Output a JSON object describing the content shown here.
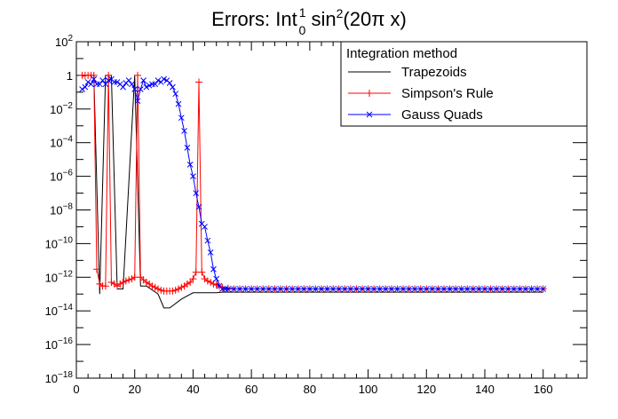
{
  "chart_data": {
    "type": "line",
    "title": {
      "prefix": "Errors: Int",
      "upper_limit": "1",
      "lower_limit": "0",
      "func": " sin",
      "power": "2",
      "arg": "(20π x)"
    },
    "xlabel": "",
    "ylabel": "",
    "xlim": [
      0,
      175
    ],
    "ylim": [
      1e-18,
      100
    ],
    "yscale": "log",
    "grid": false,
    "legend_position": "top-right",
    "legend_title": "Integration method",
    "x_ticks": [
      0,
      20,
      40,
      60,
      80,
      100,
      120,
      140,
      160
    ],
    "y_ticks": [
      {
        "value": 1e-18,
        "base": "10",
        "exp": "−18"
      },
      {
        "value": 1e-16,
        "base": "10",
        "exp": "−16"
      },
      {
        "value": 1e-14,
        "base": "10",
        "exp": "−14"
      },
      {
        "value": 1e-12,
        "base": "10",
        "exp": "−12"
      },
      {
        "value": 1e-10,
        "base": "10",
        "exp": "−10"
      },
      {
        "value": 1e-08,
        "base": "10",
        "exp": "−8"
      },
      {
        "value": 1e-06,
        "base": "10",
        "exp": "−6"
      },
      {
        "value": 0.0001,
        "base": "10",
        "exp": "−4"
      },
      {
        "value": 0.01,
        "base": "10",
        "exp": "−2"
      },
      {
        "value": 1,
        "base": "1",
        "exp": ""
      },
      {
        "value": 100,
        "base": "10",
        "exp": "2"
      }
    ],
    "series": [
      {
        "name": "Trapezoids",
        "color": "#000000",
        "marker": "none",
        "x": [
          2,
          4,
          6,
          8,
          10,
          12,
          14,
          16,
          20,
          22,
          24,
          28,
          30,
          32,
          36,
          40,
          44,
          48,
          50,
          55,
          60,
          80,
          100,
          120,
          140,
          160
        ],
        "y": [
          0.9,
          1.0,
          1.0,
          1e-13,
          1.0,
          1.0,
          2e-13,
          2e-13,
          1.0,
          3e-13,
          3e-13,
          1e-13,
          1.5e-14,
          1.5e-14,
          5e-14,
          1.2e-13,
          1.2e-13,
          1.2e-13,
          1.3e-13,
          1.3e-13,
          1.3e-13,
          1.3e-13,
          1.3e-13,
          1.3e-13,
          1.3e-13,
          1.3e-13
        ]
      },
      {
        "name": "Simpson's Rule",
        "color": "#ff0000",
        "marker": "plus",
        "x": [
          2,
          3,
          4,
          5,
          6,
          7,
          8,
          9,
          10,
          11,
          12,
          13,
          14,
          15,
          16,
          17,
          18,
          19,
          20,
          21,
          22,
          23,
          24,
          25,
          26,
          27,
          28,
          29,
          30,
          31,
          32,
          33,
          34,
          35,
          36,
          37,
          38,
          39,
          40,
          41,
          42,
          43,
          44,
          45,
          46,
          47,
          48,
          49,
          50,
          52,
          54,
          56,
          58,
          60,
          62,
          64,
          66,
          68,
          70,
          72,
          74,
          76,
          78,
          80,
          82,
          84,
          86,
          88,
          90,
          92,
          94,
          96,
          98,
          100,
          102,
          104,
          106,
          108,
          110,
          112,
          114,
          116,
          118,
          120,
          122,
          124,
          126,
          128,
          130,
          132,
          134,
          136,
          138,
          140,
          142,
          144,
          146,
          148,
          150,
          152,
          154,
          156,
          158,
          160
        ],
        "y": [
          1.0,
          1.0,
          1.0,
          1.0,
          1.0,
          3e-12,
          4e-13,
          3e-13,
          3e-13,
          1.0,
          5e-13,
          4e-13,
          3e-13,
          4e-13,
          5e-13,
          6e-13,
          7e-13,
          8e-13,
          1e-12,
          1.0,
          1e-12,
          7e-13,
          5e-13,
          4e-13,
          3e-13,
          2.5e-13,
          2e-13,
          1.7e-13,
          1.5e-13,
          1.5e-13,
          1.5e-13,
          1.5e-13,
          1.7e-13,
          2e-13,
          2.5e-13,
          3e-13,
          4e-13,
          5e-13,
          8e-13,
          2e-12,
          0.4,
          2e-12,
          8e-13,
          6e-13,
          5e-13,
          4e-13,
          3.5e-13,
          3e-13,
          2.5e-13,
          2.2e-13,
          2e-13,
          2e-13,
          2e-13,
          2e-13,
          2e-13,
          2e-13,
          2e-13,
          2e-13,
          2e-13,
          2e-13,
          2e-13,
          2e-13,
          2e-13,
          2e-13,
          2e-13,
          2e-13,
          2e-13,
          2e-13,
          2e-13,
          2e-13,
          2e-13,
          2e-13,
          2e-13,
          2e-13,
          2e-13,
          2e-13,
          2e-13,
          2e-13,
          2e-13,
          2e-13,
          2e-13,
          2e-13,
          2e-13,
          2e-13,
          2e-13,
          2e-13,
          2e-13,
          2e-13,
          2e-13,
          2e-13,
          2e-13,
          2e-13,
          2e-13,
          2e-13,
          2e-13,
          2e-13,
          2e-13,
          2e-13,
          2e-13,
          2e-13,
          2e-13,
          2e-13,
          2e-13,
          2e-13
        ]
      },
      {
        "name": "Gauss Quads",
        "color": "#0000ff",
        "marker": "x",
        "x": [
          2,
          3,
          4,
          5,
          6,
          7,
          8,
          9,
          10,
          11,
          12,
          13,
          14,
          15,
          16,
          17,
          18,
          19,
          20,
          21,
          22,
          23,
          24,
          25,
          26,
          27,
          28,
          29,
          30,
          31,
          32,
          33,
          34,
          35,
          36,
          37,
          38,
          39,
          40,
          41,
          42,
          43,
          44,
          45,
          46,
          47,
          48,
          49,
          50,
          51,
          52,
          54,
          56,
          58,
          60,
          62,
          64,
          66,
          68,
          70,
          72,
          74,
          76,
          78,
          80,
          82,
          84,
          86,
          88,
          90,
          92,
          94,
          96,
          98,
          100,
          102,
          104,
          106,
          108,
          110,
          112,
          114,
          116,
          118,
          120,
          122,
          124,
          126,
          128,
          130,
          132,
          134,
          136,
          138,
          140,
          142,
          144,
          146,
          148,
          150,
          152,
          154,
          156,
          158,
          160
        ],
        "y": [
          0.15,
          0.2,
          0.4,
          0.3,
          0.6,
          0.3,
          0.3,
          0.5,
          0.3,
          0.5,
          0.6,
          0.4,
          0.4,
          0.3,
          0.2,
          0.35,
          0.5,
          0.3,
          0.15,
          0.03,
          0.15,
          0.5,
          0.2,
          0.25,
          0.3,
          0.3,
          0.5,
          0.4,
          0.6,
          0.5,
          0.35,
          0.2,
          0.08,
          0.02,
          0.003,
          0.0005,
          5e-05,
          5e-06,
          1e-06,
          1e-07,
          1.5e-08,
          1.5e-09,
          1e-09,
          1.5e-10,
          3e-11,
          3e-12,
          8e-13,
          3e-13,
          2e-13,
          2e-13,
          2e-13,
          2e-13,
          2e-13,
          2e-13,
          2e-13,
          2e-13,
          2e-13,
          2e-13,
          2e-13,
          2e-13,
          2e-13,
          2e-13,
          2e-13,
          2e-13,
          2e-13,
          2e-13,
          2e-13,
          2e-13,
          2e-13,
          2e-13,
          2e-13,
          2e-13,
          2e-13,
          2e-13,
          2e-13,
          2e-13,
          2e-13,
          2e-13,
          2e-13,
          2e-13,
          2e-13,
          2e-13,
          2e-13,
          2e-13,
          2e-13,
          2e-13,
          2e-13,
          2e-13,
          2e-13,
          2e-13,
          2e-13,
          2e-13,
          2e-13,
          2e-13,
          2e-13,
          2e-13,
          2e-13,
          2e-13,
          2e-13,
          2e-13,
          2e-13,
          2e-13,
          2e-13,
          2e-13,
          2e-13
        ]
      }
    ]
  }
}
